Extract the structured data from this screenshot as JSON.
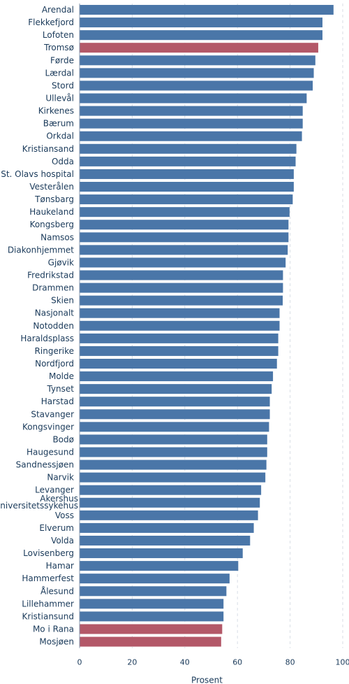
{
  "chart_data": {
    "type": "bar",
    "orientation": "horizontal",
    "title": "",
    "xlabel": "Prosent",
    "ylabel": "",
    "xlim": [
      0,
      100
    ],
    "xticks": [
      0,
      20,
      40,
      60,
      80,
      100
    ],
    "grid": true,
    "legend": "none",
    "colors": {
      "default": "#4a76a8",
      "highlight": "#b35868"
    },
    "categories": [
      "Arendal",
      "Flekkefjord",
      "Lofoten",
      "Tromsø",
      "Førde",
      "Lærdal",
      "Stord",
      "Ullevål",
      "Kirkenes",
      "Bærum",
      "Orkdal",
      "Kristiansand",
      "Odda",
      "St. Olavs hospital",
      "Vesterålen",
      "Tønsbarg",
      "Haukeland",
      "Kongsberg",
      "Namsos",
      "Diakonhjemmet",
      "Gjøvik",
      "Fredrikstad",
      "Drammen",
      "Skien",
      "Nasjonalt",
      "Notodden",
      "Haraldsplass",
      "Ringerike",
      "Nordfjord",
      "Molde",
      "Tynset",
      "Harstad",
      "Stavanger",
      "Kongsvinger",
      "Bodø",
      "Haugesund",
      "Sandnessjøen",
      "Narvik",
      "Levanger",
      "Akershus\nuniversitetssykehus",
      "Voss",
      "Elverum",
      "Volda",
      "Lovisenberg",
      "Hamar",
      "Hammerfest",
      "Ålesund",
      "Lillehammer",
      "Kristiansund",
      "Mo i Rana",
      "Mosjøen"
    ],
    "values": [
      96.5,
      92.3,
      92.3,
      90.7,
      89.6,
      89.0,
      88.6,
      86.3,
      84.8,
      84.8,
      84.5,
      82.4,
      82.1,
      81.4,
      81.4,
      81.0,
      79.8,
      79.4,
      79.4,
      79.1,
      78.3,
      77.3,
      77.3,
      77.2,
      76.0,
      76.0,
      75.5,
      75.5,
      75.0,
      73.5,
      73.0,
      72.3,
      72.3,
      72.0,
      71.3,
      71.3,
      71.0,
      70.6,
      69.0,
      68.5,
      67.8,
      66.2,
      64.8,
      62.0,
      60.3,
      57.0,
      55.8,
      54.7,
      54.7,
      54.2,
      53.8
    ],
    "highlighted": [
      "Tromsø",
      "Mo i Rana",
      "Mosjøen"
    ]
  }
}
